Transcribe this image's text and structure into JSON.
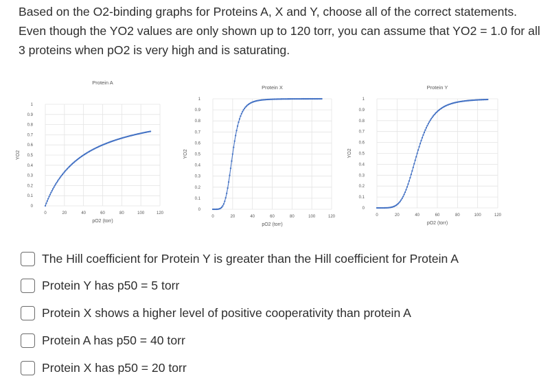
{
  "question": {
    "text": "Based on the O2-binding graphs for Proteins A, X and Y, choose all of the correct statements. Even though the YO2 values are only shown up to 120 torr, you can assume that YO2 = 1.0 for all 3 proteins when pO2 is very high and is saturating."
  },
  "series_color": "#4472c4",
  "chart_data": [
    {
      "type": "scatter",
      "title": "Protein A",
      "xlabel": "pO2 (torr)",
      "ylabel": "YO2",
      "xlim": [
        0,
        120
      ],
      "ylim": [
        0,
        1
      ],
      "x_ticks": [
        "0",
        "20",
        "40",
        "60",
        "80",
        "100",
        "120"
      ],
      "y_ticks": [
        "0",
        "0.1",
        "0.2",
        "0.3",
        "0.4",
        "0.5",
        "0.6",
        "0.7",
        "0.8",
        "0.9",
        "1"
      ],
      "grid": true,
      "curve": {
        "model": "hill",
        "p50": 40,
        "n": 1,
        "x_range": [
          0,
          110
        ]
      }
    },
    {
      "type": "scatter",
      "title": "Protein X",
      "xlabel": "pO2 (torr)",
      "ylabel": "YO2",
      "xlim": [
        0,
        120
      ],
      "ylim": [
        0,
        1
      ],
      "x_ticks": [
        "0",
        "20",
        "40",
        "60",
        "80",
        "100",
        "120"
      ],
      "y_ticks": [
        "0",
        "0.1",
        "0.2",
        "0.3",
        "0.4",
        "0.5",
        "0.6",
        "0.7",
        "0.8",
        "0.9",
        "1"
      ],
      "grid": true,
      "curve": {
        "model": "hill",
        "p50": 20,
        "n": 5,
        "x_range": [
          0,
          110
        ]
      }
    },
    {
      "type": "scatter",
      "title": "Protein Y",
      "xlabel": "pO2 (torr)",
      "ylabel": "YO2",
      "xlim": [
        0,
        120
      ],
      "ylim": [
        0,
        1
      ],
      "x_ticks": [
        "0",
        "20",
        "40",
        "60",
        "80",
        "100",
        "120"
      ],
      "y_ticks": [
        "0",
        "0.1",
        "0.2",
        "0.3",
        "0.4",
        "0.5",
        "0.6",
        "0.7",
        "0.8",
        "0.9",
        "1"
      ],
      "grid": true,
      "curve": {
        "model": "hill",
        "p50": 40,
        "n": 5,
        "x_range": [
          0,
          110
        ]
      }
    }
  ],
  "options": [
    {
      "label": "The Hill coefficient for Protein Y is greater than the Hill coefficient for Protein A",
      "checked": false
    },
    {
      "label": "Protein Y has p50 = 5 torr",
      "checked": false
    },
    {
      "label": "Protein X shows a higher level of positive cooperativity than protein A",
      "checked": false
    },
    {
      "label": "Protein A has p50 = 40 torr",
      "checked": false
    },
    {
      "label": "Protein X has p50 = 20 torr",
      "checked": false
    }
  ]
}
